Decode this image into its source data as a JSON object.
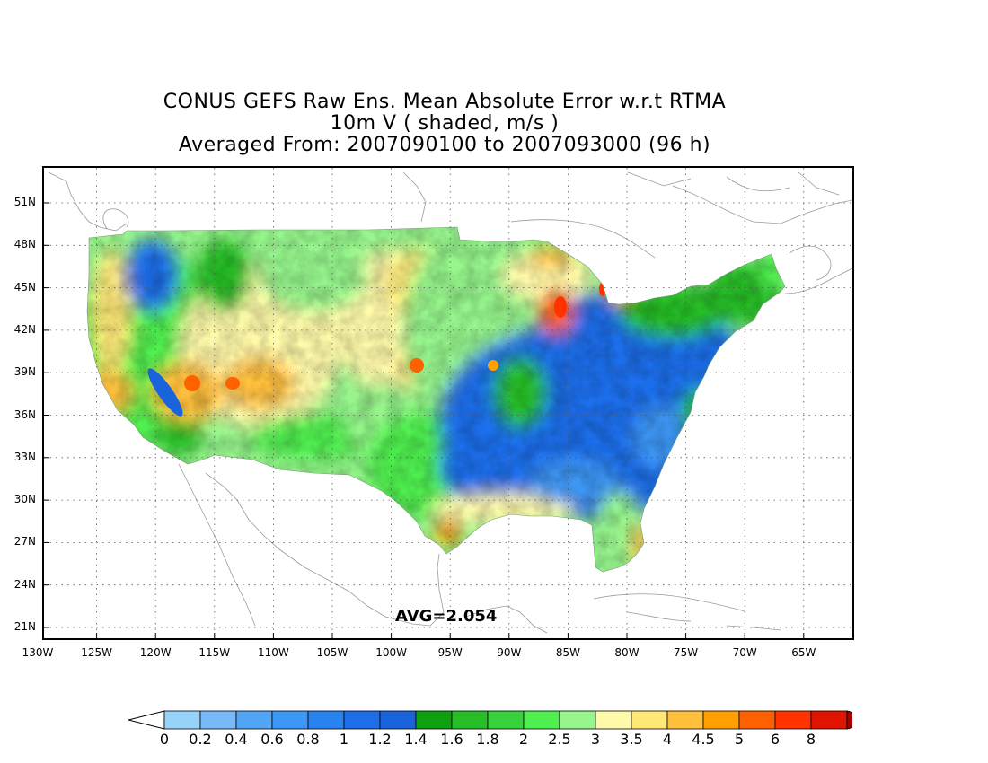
{
  "title": {
    "line1": "CONUS GEFS Raw Ens. Mean Absolute Error w.r.t RTMA",
    "line2": "10m V ( shaded, m/s )",
    "line3": "Averaged From: 2007090100 to 2007093000 (96 h)"
  },
  "avg_label": "AVG=2.054",
  "map": {
    "lat_labels": [
      "51N",
      "48N",
      "45N",
      "42N",
      "39N",
      "36N",
      "33N",
      "30N",
      "27N",
      "24N",
      "21N"
    ],
    "lon_labels": [
      "130W",
      "125W",
      "120W",
      "115W",
      "110W",
      "105W",
      "100W",
      "95W",
      "90W",
      "85W",
      "80W",
      "75W",
      "70W",
      "65W"
    ],
    "grid": "dotted"
  },
  "colorbar": {
    "labels": [
      "0",
      "0.2",
      "0.4",
      "0.6",
      "0.8",
      "1",
      "1.2",
      "1.4",
      "1.6",
      "1.8",
      "2",
      "2.5",
      "3",
      "3.5",
      "4",
      "4.5",
      "5",
      "6",
      "8"
    ],
    "colors": [
      "#96d2fa",
      "#78b9fa",
      "#50a5f5",
      "#3c97f5",
      "#2882f0",
      "#1e6eeb",
      "#1964dc",
      "#0fa00f",
      "#28be28",
      "#37d23c",
      "#50f050",
      "#96f58c",
      "#fffaaa",
      "#ffe878",
      "#ffc03c",
      "#ffa000",
      "#ff6000",
      "#ff3200",
      "#e11400",
      "#a50000"
    ],
    "under_color": "#ffffff",
    "over_color": "#a50000"
  }
}
